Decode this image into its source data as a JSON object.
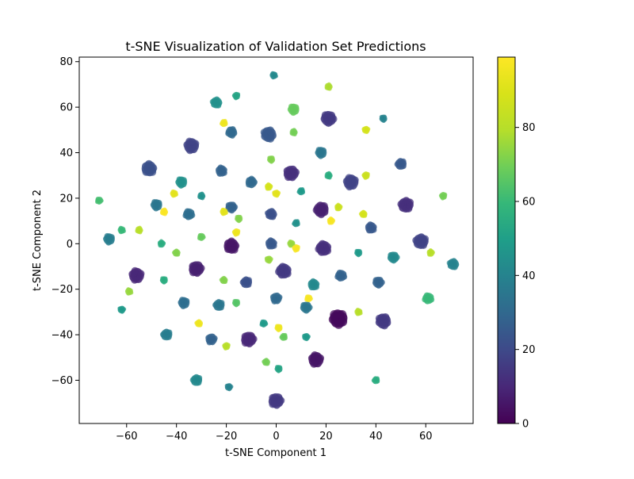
{
  "chart_data": {
    "type": "scatter",
    "title": "t-SNE Visualization of Validation Set Predictions",
    "xlabel": "t-SNE Component 1",
    "ylabel": "t-SNE Component 2",
    "xlim": [
      -79,
      79
    ],
    "ylim": [
      -79,
      82
    ],
    "xticks": [
      -60,
      -40,
      -20,
      0,
      20,
      40,
      60
    ],
    "yticks": [
      -60,
      -40,
      -20,
      0,
      20,
      40,
      60,
      80
    ],
    "grid": false,
    "colormap": "viridis",
    "marker_alpha": 0.7,
    "colorbar": {
      "range": [
        0,
        99
      ],
      "ticks": [
        0,
        20,
        40,
        60,
        80
      ]
    },
    "clusters": [
      {
        "x": -1,
        "y": 74,
        "value": 42,
        "size": 1
      },
      {
        "x": 21,
        "y": 69,
        "value": 78,
        "size": 1
      },
      {
        "x": -16,
        "y": 65,
        "value": 52,
        "size": 1
      },
      {
        "x": -24,
        "y": 62,
        "value": 45,
        "size": 2
      },
      {
        "x": 7,
        "y": 59,
        "value": 68,
        "size": 2
      },
      {
        "x": 43,
        "y": 55,
        "value": 40,
        "size": 1
      },
      {
        "x": 21,
        "y": 55,
        "value": 15,
        "size": 3
      },
      {
        "x": -21,
        "y": 53,
        "value": 95,
        "size": 1
      },
      {
        "x": 36,
        "y": 50,
        "value": 88,
        "size": 1
      },
      {
        "x": -18,
        "y": 49,
        "value": 30,
        "size": 2
      },
      {
        "x": 7,
        "y": 49,
        "value": 70,
        "size": 1
      },
      {
        "x": -3,
        "y": 48,
        "value": 25,
        "size": 3
      },
      {
        "x": -34,
        "y": 43,
        "value": 18,
        "size": 3
      },
      {
        "x": 18,
        "y": 40,
        "value": 35,
        "size": 2
      },
      {
        "x": -2,
        "y": 37,
        "value": 72,
        "size": 1
      },
      {
        "x": 50,
        "y": 35,
        "value": 25,
        "size": 2
      },
      {
        "x": -51,
        "y": 33,
        "value": 22,
        "size": 3
      },
      {
        "x": -22,
        "y": 32,
        "value": 28,
        "size": 2
      },
      {
        "x": 6,
        "y": 31,
        "value": 12,
        "size": 3
      },
      {
        "x": 21,
        "y": 30,
        "value": 55,
        "size": 1
      },
      {
        "x": 36,
        "y": 30,
        "value": 85,
        "size": 1
      },
      {
        "x": 30,
        "y": 27,
        "value": 18,
        "size": 3
      },
      {
        "x": -38,
        "y": 27,
        "value": 45,
        "size": 2
      },
      {
        "x": -10,
        "y": 27,
        "value": 30,
        "size": 2
      },
      {
        "x": -3,
        "y": 25,
        "value": 88,
        "size": 1
      },
      {
        "x": 10,
        "y": 23,
        "value": 48,
        "size": 1
      },
      {
        "x": 0,
        "y": 22,
        "value": 92,
        "size": 1
      },
      {
        "x": -41,
        "y": 22,
        "value": 92,
        "size": 1
      },
      {
        "x": -30,
        "y": 21,
        "value": 45,
        "size": 1
      },
      {
        "x": 67,
        "y": 21,
        "value": 70,
        "size": 1
      },
      {
        "x": -71,
        "y": 19,
        "value": 62,
        "size": 1
      },
      {
        "x": -48,
        "y": 17,
        "value": 35,
        "size": 2
      },
      {
        "x": 52,
        "y": 17,
        "value": 12,
        "size": 3
      },
      {
        "x": 25,
        "y": 16,
        "value": 85,
        "size": 1
      },
      {
        "x": -18,
        "y": 16,
        "value": 28,
        "size": 2
      },
      {
        "x": 18,
        "y": 15,
        "value": 8,
        "size": 3
      },
      {
        "x": -21,
        "y": 14,
        "value": 92,
        "size": 1
      },
      {
        "x": -45,
        "y": 14,
        "value": 98,
        "size": 1
      },
      {
        "x": -35,
        "y": 13,
        "value": 32,
        "size": 2
      },
      {
        "x": -2,
        "y": 13,
        "value": 22,
        "size": 2
      },
      {
        "x": 35,
        "y": 13,
        "value": 88,
        "size": 1
      },
      {
        "x": -15,
        "y": 11,
        "value": 72,
        "size": 1
      },
      {
        "x": 22,
        "y": 10,
        "value": 97,
        "size": 1
      },
      {
        "x": 8,
        "y": 9,
        "value": 45,
        "size": 1
      },
      {
        "x": 38,
        "y": 7,
        "value": 25,
        "size": 2
      },
      {
        "x": -62,
        "y": 6,
        "value": 60,
        "size": 1
      },
      {
        "x": -55,
        "y": 6,
        "value": 80,
        "size": 1
      },
      {
        "x": -16,
        "y": 5,
        "value": 95,
        "size": 1
      },
      {
        "x": -30,
        "y": 3,
        "value": 68,
        "size": 1
      },
      {
        "x": -67,
        "y": 2,
        "value": 38,
        "size": 2
      },
      {
        "x": 58,
        "y": 1,
        "value": 18,
        "size": 3
      },
      {
        "x": -46,
        "y": 0,
        "value": 55,
        "size": 1
      },
      {
        "x": -18,
        "y": -1,
        "value": 5,
        "size": 3
      },
      {
        "x": -2,
        "y": 0,
        "value": 25,
        "size": 2
      },
      {
        "x": 6,
        "y": 0,
        "value": 75,
        "size": 1
      },
      {
        "x": 19,
        "y": -2,
        "value": 12,
        "size": 3
      },
      {
        "x": 8,
        "y": -2,
        "value": 97,
        "size": 1
      },
      {
        "x": 71,
        "y": -9,
        "value": 40,
        "size": 2
      },
      {
        "x": -40,
        "y": -4,
        "value": 72,
        "size": 1
      },
      {
        "x": 33,
        "y": -4,
        "value": 48,
        "size": 1
      },
      {
        "x": 62,
        "y": -4,
        "value": 80,
        "size": 1
      },
      {
        "x": 47,
        "y": -6,
        "value": 42,
        "size": 2
      },
      {
        "x": -3,
        "y": -7,
        "value": 75,
        "size": 1
      },
      {
        "x": -32,
        "y": -11,
        "value": 8,
        "size": 3
      },
      {
        "x": 3,
        "y": -12,
        "value": 15,
        "size": 3
      },
      {
        "x": 26,
        "y": -14,
        "value": 28,
        "size": 2
      },
      {
        "x": -56,
        "y": -14,
        "value": 10,
        "size": 3
      },
      {
        "x": -21,
        "y": -16,
        "value": 72,
        "size": 1
      },
      {
        "x": -45,
        "y": -16,
        "value": 55,
        "size": 1
      },
      {
        "x": -12,
        "y": -17,
        "value": 22,
        "size": 2
      },
      {
        "x": 41,
        "y": -17,
        "value": 28,
        "size": 2
      },
      {
        "x": 15,
        "y": -18,
        "value": 42,
        "size": 2
      },
      {
        "x": -59,
        "y": -21,
        "value": 75,
        "size": 1
      },
      {
        "x": 0,
        "y": -24,
        "value": 30,
        "size": 2
      },
      {
        "x": 61,
        "y": -24,
        "value": 60,
        "size": 2
      },
      {
        "x": 13,
        "y": -24,
        "value": 97,
        "size": 1
      },
      {
        "x": -37,
        "y": -26,
        "value": 32,
        "size": 2
      },
      {
        "x": -16,
        "y": -26,
        "value": 65,
        "size": 1
      },
      {
        "x": -23,
        "y": -27,
        "value": 35,
        "size": 2
      },
      {
        "x": 12,
        "y": -28,
        "value": 35,
        "size": 2
      },
      {
        "x": -62,
        "y": -29,
        "value": 48,
        "size": 1
      },
      {
        "x": 33,
        "y": -30,
        "value": 80,
        "size": 1
      },
      {
        "x": 25,
        "y": -33,
        "value": 2,
        "size": 4
      },
      {
        "x": 43,
        "y": -34,
        "value": 15,
        "size": 3
      },
      {
        "x": -5,
        "y": -35,
        "value": 48,
        "size": 1
      },
      {
        "x": -31,
        "y": -35,
        "value": 95,
        "size": 1
      },
      {
        "x": 1,
        "y": -37,
        "value": 95,
        "size": 1
      },
      {
        "x": -44,
        "y": -40,
        "value": 38,
        "size": 2
      },
      {
        "x": 3,
        "y": -41,
        "value": 68,
        "size": 1
      },
      {
        "x": 12,
        "y": -41,
        "value": 48,
        "size": 1
      },
      {
        "x": -11,
        "y": -42,
        "value": 10,
        "size": 3
      },
      {
        "x": -26,
        "y": -42,
        "value": 28,
        "size": 2
      },
      {
        "x": -20,
        "y": -45,
        "value": 80,
        "size": 1
      },
      {
        "x": 16,
        "y": -51,
        "value": 5,
        "size": 3
      },
      {
        "x": -4,
        "y": -52,
        "value": 70,
        "size": 1
      },
      {
        "x": 1,
        "y": -55,
        "value": 52,
        "size": 1
      },
      {
        "x": -32,
        "y": -60,
        "value": 42,
        "size": 2
      },
      {
        "x": 40,
        "y": -60,
        "value": 55,
        "size": 1
      },
      {
        "x": -19,
        "y": -63,
        "value": 40,
        "size": 1
      },
      {
        "x": 0,
        "y": -69,
        "value": 15,
        "size": 3
      }
    ]
  }
}
